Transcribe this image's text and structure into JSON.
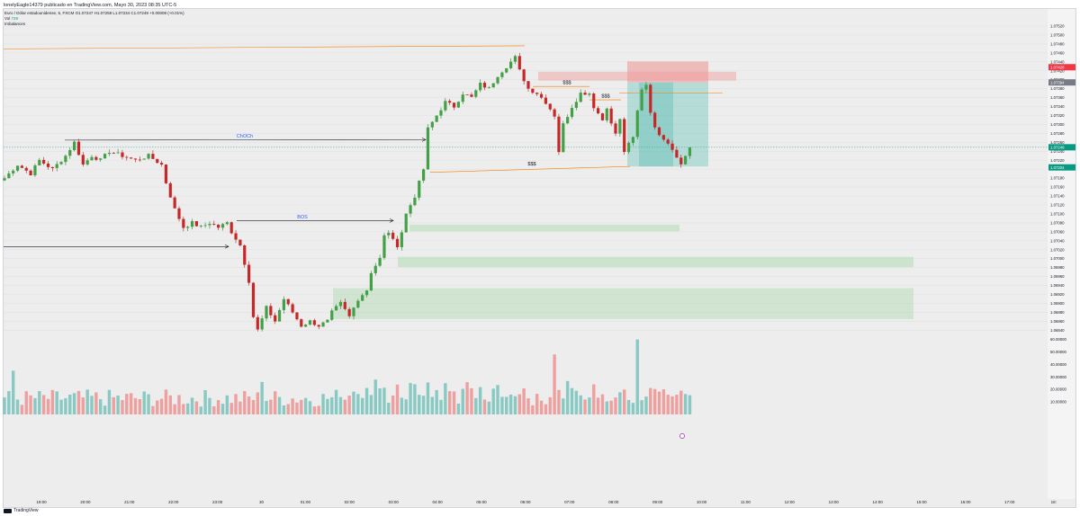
{
  "header": {
    "publish_text": "lonelyEagle14379 publicado en TradingView.com, Mayo 30, 2023 08:35 UTC-5"
  },
  "legend": {
    "symbol": "Euro / Dólar estadounidense, 5, FXCM",
    "ohlc": "O1.07247 H1.07258 L1.07234 C1.07249 +0.00008 (+0.01%)",
    "vol_label": "Vol",
    "vol_value": "729",
    "indicator": "Imbalances"
  },
  "chart_data": {
    "type": "candlestick",
    "symbol": "EURUSD",
    "timeframe": "5",
    "price_axis": {
      "range": [
        1.0683,
        1.0754
      ],
      "ticks": [
        "1.07520",
        "1.07500",
        "1.07480",
        "1.07460",
        "1.07440",
        "1.07420",
        "1.07400",
        "1.07380",
        "1.07360",
        "1.07340",
        "1.07320",
        "1.07300",
        "1.07280",
        "1.07260",
        "1.07240",
        "1.07220",
        "1.07200",
        "1.07180",
        "1.07160",
        "1.07140",
        "1.07120",
        "1.07100",
        "1.07080",
        "1.07060",
        "1.07040",
        "1.07020",
        "1.07000",
        "1.06980",
        "1.06960",
        "1.06940",
        "1.06920",
        "1.06900",
        "1.06880",
        "1.06860",
        "1.06840"
      ]
    },
    "volume_axis": {
      "range": [
        0,
        70
      ],
      "ticks": [
        "60.00000",
        "50.00000",
        "40.00000",
        "30.00000",
        "20.00000",
        "10.00000"
      ]
    },
    "time_axis": {
      "labels": [
        "19:00",
        "20:00",
        "21:00",
        "22:00",
        "23:00",
        "30",
        "01:00",
        "02:00",
        "03:00",
        "04:00",
        "05:00",
        "06:00",
        "07:00",
        "08:00",
        "09:00",
        "10:00",
        "11:00",
        "12:00",
        "13:00",
        "14:00",
        "15:00",
        "16:00",
        "17:00",
        "18:"
      ]
    },
    "price_markers": {
      "stop": "1.07428",
      "entry": "1.07394",
      "last": "1.07249",
      "target": "1.07204"
    },
    "annotations": {
      "choch": "ChOCh",
      "bos": "BOS",
      "liquidity": "$$$"
    },
    "close_path": [
      [
        0,
        1.0718
      ],
      [
        3,
        1.0721
      ],
      [
        6,
        1.0719
      ],
      [
        8,
        1.0722
      ],
      [
        11,
        1.072
      ],
      [
        14,
        1.0723
      ],
      [
        16,
        1.0726
      ],
      [
        18,
        1.0721
      ],
      [
        20,
        1.0723
      ],
      [
        22,
        1.0722
      ],
      [
        24,
        1.0724
      ],
      [
        27,
        1.0723
      ],
      [
        30,
        1.0722
      ],
      [
        33,
        1.0723
      ],
      [
        36,
        1.0721
      ],
      [
        37,
        1.0717
      ],
      [
        39,
        1.0711
      ],
      [
        41,
        1.0707
      ],
      [
        43,
        1.0708
      ],
      [
        45,
        1.0707
      ],
      [
        47,
        1.0708
      ],
      [
        49,
        1.0707
      ],
      [
        51,
        1.0708
      ],
      [
        52,
        1.0706
      ],
      [
        54,
        1.0703
      ],
      [
        56,
        1.0695
      ],
      [
        57,
        1.0687
      ],
      [
        58,
        1.0684
      ],
      [
        60,
        1.0689
      ],
      [
        62,
        1.0686
      ],
      [
        64,
        1.0691
      ],
      [
        66,
        1.0688
      ],
      [
        68,
        1.0685
      ],
      [
        70,
        1.0686
      ],
      [
        72,
        1.0685
      ],
      [
        74,
        1.0686
      ],
      [
        75,
        1.0688
      ],
      [
        77,
        1.069
      ],
      [
        79,
        1.0687
      ],
      [
        81,
        1.0691
      ],
      [
        83,
        1.0693
      ],
      [
        84,
        1.0697
      ],
      [
        86,
        1.07
      ],
      [
        87,
        1.0705
      ],
      [
        88,
        1.0706
      ],
      [
        89,
        1.0704
      ],
      [
        90,
        1.0703
      ],
      [
        91,
        1.0706
      ],
      [
        92,
        1.071
      ],
      [
        94,
        1.0714
      ],
      [
        96,
        1.072
      ],
      [
        97,
        1.0729
      ],
      [
        99,
        1.0732
      ],
      [
        101,
        1.0735
      ],
      [
        103,
        1.0734
      ],
      [
        105,
        1.0737
      ],
      [
        107,
        1.0736
      ],
      [
        109,
        1.0739
      ],
      [
        111,
        1.0738
      ],
      [
        113,
        1.0741
      ],
      [
        115,
        1.0743
      ],
      [
        117,
        1.0745
      ],
      [
        118,
        1.0742
      ],
      [
        120,
        1.0738
      ],
      [
        122,
        1.0737
      ],
      [
        124,
        1.0735
      ],
      [
        126,
        1.0732
      ],
      [
        127,
        1.0724
      ],
      [
        128,
        1.073
      ],
      [
        130,
        1.0734
      ],
      [
        132,
        1.0737
      ],
      [
        134,
        1.0737
      ],
      [
        135,
        1.0734
      ],
      [
        137,
        1.0731
      ],
      [
        138,
        1.0734
      ],
      [
        139,
        1.073
      ],
      [
        140,
        1.0728
      ],
      [
        141,
        1.0731
      ],
      [
        142,
        1.0724
      ],
      [
        144,
        1.0727
      ],
      [
        145,
        1.0733
      ],
      [
        146,
        1.0738
      ],
      [
        147,
        1.0739
      ],
      [
        148,
        1.0733
      ],
      [
        149,
        1.0729
      ],
      [
        150,
        1.0728
      ],
      [
        152,
        1.0726
      ],
      [
        154,
        1.0723
      ],
      [
        155,
        1.0721
      ],
      [
        157,
        1.0725
      ]
    ]
  }
}
